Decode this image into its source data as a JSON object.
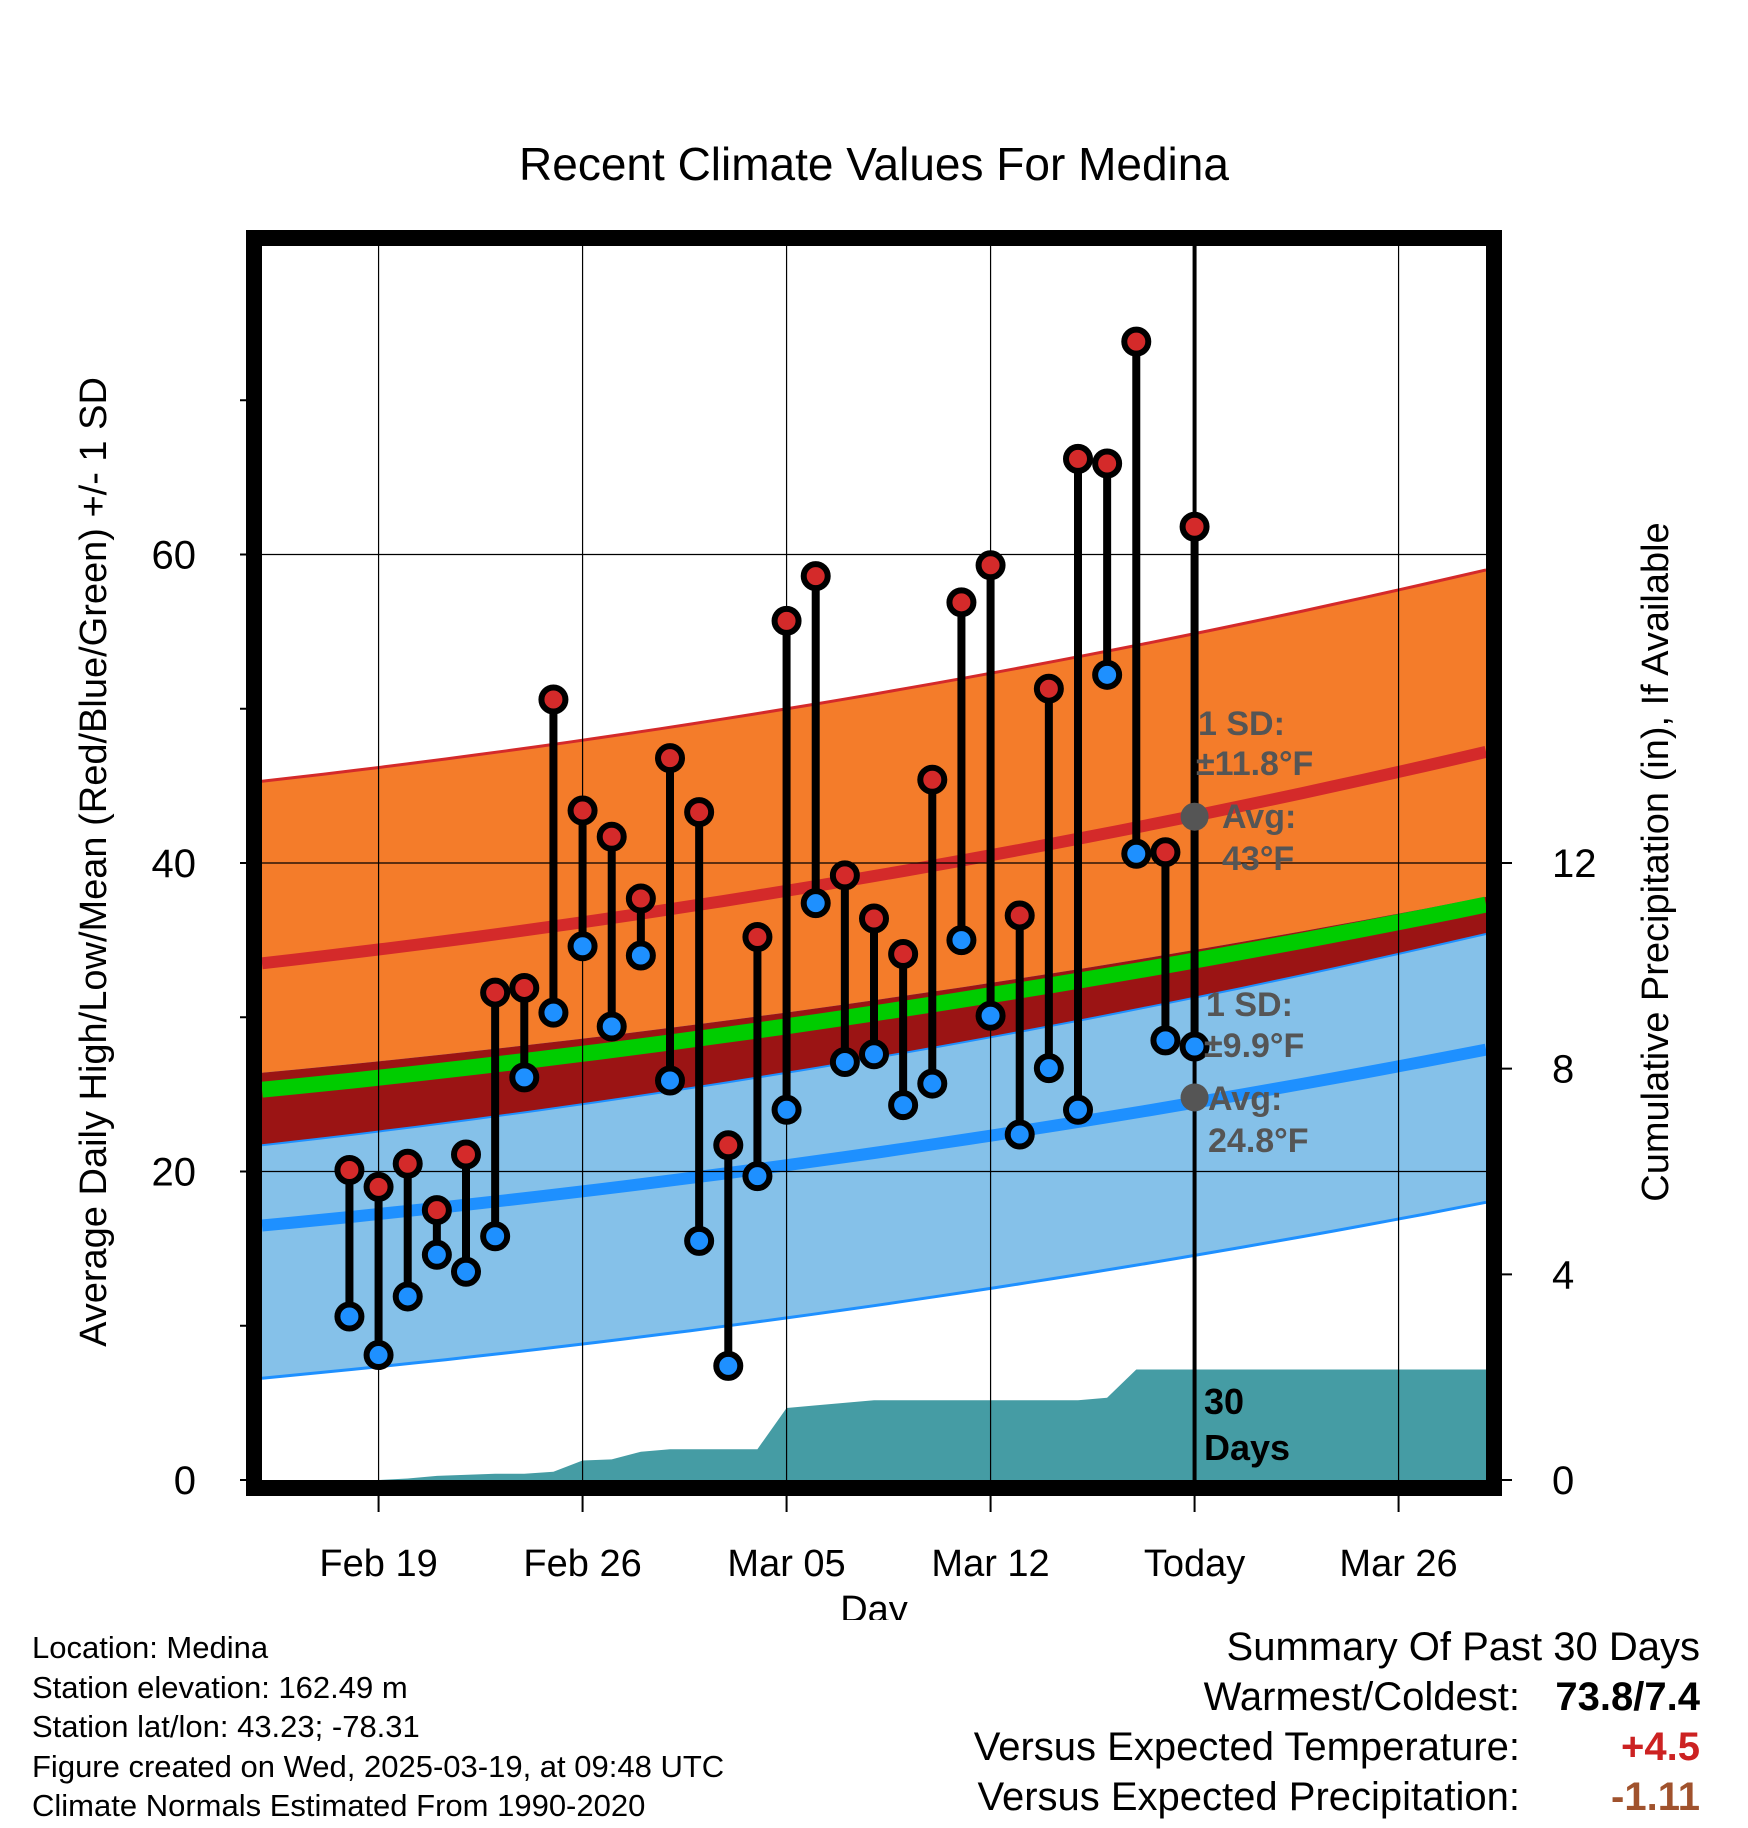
{
  "chart_data": {
    "type": "line",
    "title": "Recent Climate Values For Medina",
    "xlabel": "Day",
    "ylabel": "Average Daily High/Low/Mean (Red/Blue/Green) +/- 1 SD",
    "y2label": "Cumulative Precipitation (in), If Available",
    "x_range": [
      "2025-02-15",
      "2025-03-29"
    ],
    "ylim": [
      0,
      80
    ],
    "y_ticks": [
      0,
      20,
      40,
      60
    ],
    "y2lim": [
      0,
      24
    ],
    "y2_ticks": [
      0,
      4,
      8,
      12
    ],
    "x_ticks": [
      {
        "date": "2025-02-19",
        "label": "Feb 19"
      },
      {
        "date": "2025-02-26",
        "label": "Feb 26"
      },
      {
        "date": "2025-03-05",
        "label": "Mar 05"
      },
      {
        "date": "2025-03-12",
        "label": "Mar 12"
      },
      {
        "date": "2025-03-19",
        "label": "Today"
      },
      {
        "date": "2025-03-26",
        "label": "Mar 26"
      }
    ],
    "grid": true,
    "today": "2025-03-19",
    "daily_dates": [
      "2025-02-18",
      "2025-02-19",
      "2025-02-20",
      "2025-02-21",
      "2025-02-22",
      "2025-02-23",
      "2025-02-24",
      "2025-02-25",
      "2025-02-26",
      "2025-02-27",
      "2025-02-28",
      "2025-03-01",
      "2025-03-02",
      "2025-03-03",
      "2025-03-04",
      "2025-03-05",
      "2025-03-06",
      "2025-03-07",
      "2025-03-08",
      "2025-03-09",
      "2025-03-10",
      "2025-03-11",
      "2025-03-12",
      "2025-03-13",
      "2025-03-14",
      "2025-03-15",
      "2025-03-16",
      "2025-03-17",
      "2025-03-18"
    ],
    "daily_high": [
      20.1,
      19.0,
      20.5,
      17.5,
      21.1,
      31.6,
      31.9,
      50.6,
      43.4,
      41.7,
      37.7,
      46.8,
      43.3,
      21.7,
      35.2,
      55.7,
      58.6,
      39.2,
      36.4,
      34.1,
      45.4,
      56.9,
      59.3,
      36.6,
      51.3,
      66.2,
      65.9,
      73.8,
      40.7
    ],
    "daily_low": [
      10.6,
      8.1,
      11.9,
      14.6,
      13.5,
      15.8,
      26.1,
      30.3,
      34.6,
      29.4,
      34.0,
      25.9,
      15.5,
      7.4,
      19.7,
      24.0,
      37.4,
      27.1,
      27.6,
      24.3,
      25.7,
      35.0,
      30.1,
      22.4,
      26.7,
      24.0,
      52.2,
      40.6,
      28.5
    ],
    "daily_high_extra": {
      "date": "2025-03-18",
      "high": 61.8,
      "low": 28.1
    },
    "normals": {
      "dates": [
        "2025-02-15",
        "2025-03-29"
      ],
      "high_avg": [
        33.5,
        47.2
      ],
      "high_sd": 11.8,
      "low_avg": [
        16.5,
        27.9
      ],
      "low_sd": 9.9,
      "mean_avg": [
        25.3,
        37.3
      ]
    },
    "precip_cumulative": {
      "dates": [
        "2025-02-15",
        "2025-02-19",
        "2025-02-20",
        "2025-02-21",
        "2025-02-23",
        "2025-02-24",
        "2025-02-25",
        "2025-02-26",
        "2025-02-27",
        "2025-02-28",
        "2025-03-01",
        "2025-03-04",
        "2025-03-05",
        "2025-03-06",
        "2025-03-08",
        "2025-03-15",
        "2025-03-16",
        "2025-03-17",
        "2025-03-29"
      ],
      "values": [
        0,
        0,
        0.03,
        0.08,
        0.12,
        0.12,
        0.16,
        0.38,
        0.4,
        0.55,
        0.6,
        0.6,
        1.4,
        1.45,
        1.55,
        1.55,
        1.6,
        2.15,
        2.15
      ]
    },
    "annotations": {
      "high_sd_label": "1 SD:",
      "high_sd_value": "±11.8°F",
      "high_avg_label": "Avg:",
      "high_avg_value": "43°F",
      "low_sd_label": "1 SD:",
      "low_sd_value": "±9.9°F",
      "low_avg_label": "Avg:",
      "low_avg_value": "24.8°F",
      "days_label_1": "30",
      "days_label_2": "Days"
    },
    "colors": {
      "high_band": "#f47c2a",
      "high_line": "#d42a2a",
      "low_band": "#85c1e9",
      "low_line": "#1e90ff",
      "mean_line": "#00cc00",
      "overlap": "#9b1414",
      "precip": "#459ca4",
      "high_dot": "#d42a2a",
      "low_dot": "#1e90ff",
      "annotation": "#555555"
    }
  },
  "info": {
    "location": "Location: Medina",
    "elevation": "Station elevation: 162.49 m",
    "latlon": "Station lat/lon: 43.23; -78.31",
    "created": "Figure created on Wed, 2025-03-19, at 09:48 UTC",
    "normals": "Climate Normals Estimated From 1990-2020"
  },
  "summary": {
    "title": "Summary Of Past 30 Days",
    "warmest_label": "Warmest/Coldest:",
    "warmest_value": "73.8/7.4",
    "temp_label": "Versus Expected Temperature:",
    "temp_value": "+4.5",
    "temp_color": "#cc2222",
    "precip_label": "Versus Expected Precipitation:",
    "precip_value": "-1.11",
    "precip_color": "#a0522d"
  }
}
